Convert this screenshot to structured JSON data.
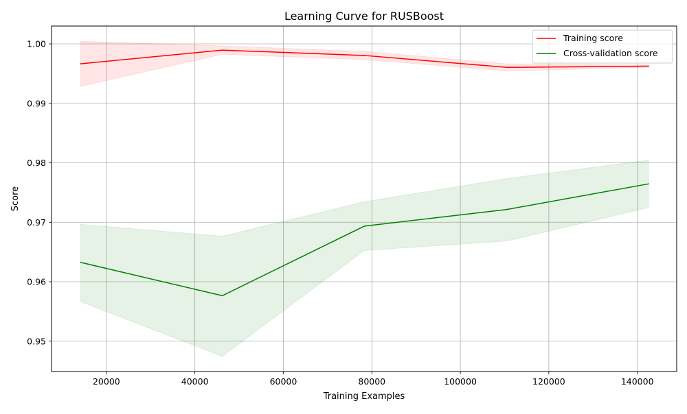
{
  "chart_data": {
    "type": "line",
    "title": "Learning Curve for RUSBoost",
    "xlabel": "Training Examples",
    "ylabel": "Score",
    "xlim": [
      7600,
      148900
    ],
    "ylim": [
      0.9449,
      1.003
    ],
    "xticks": [
      20000,
      40000,
      60000,
      80000,
      100000,
      120000,
      140000
    ],
    "xtick_labels": [
      "20000",
      "40000",
      "60000",
      "80000",
      "100000",
      "120000",
      "140000"
    ],
    "yticks": [
      0.95,
      0.96,
      0.97,
      0.98,
      0.99,
      1.0
    ],
    "ytick_labels": [
      "0.95",
      "0.96",
      "0.97",
      "0.98",
      "0.99",
      "1.00"
    ],
    "grid": true,
    "legend_position": "top-right",
    "x": [
      14200,
      46200,
      78300,
      110500,
      142500
    ],
    "series": [
      {
        "name": "Training score",
        "color": "#ff0000",
        "band_color": "#ff0000",
        "values": [
          0.99665,
          0.99895,
          0.99805,
          0.99605,
          0.99625
        ],
        "lower": [
          0.99285,
          0.99825,
          0.99735,
          0.99545,
          0.99605
        ],
        "upper": [
          1.00045,
          0.99965,
          0.99875,
          0.99665,
          0.99645
        ]
      },
      {
        "name": "Cross-validation score",
        "color": "#008000",
        "band_color": "#008000",
        "values": [
          0.96325,
          0.95765,
          0.96935,
          0.97215,
          0.97645
        ],
        "lower": [
          0.95665,
          0.94745,
          0.96525,
          0.96685,
          0.97245
        ],
        "upper": [
          0.96965,
          0.96765,
          0.97345,
          0.97735,
          0.98045
        ]
      }
    ]
  }
}
